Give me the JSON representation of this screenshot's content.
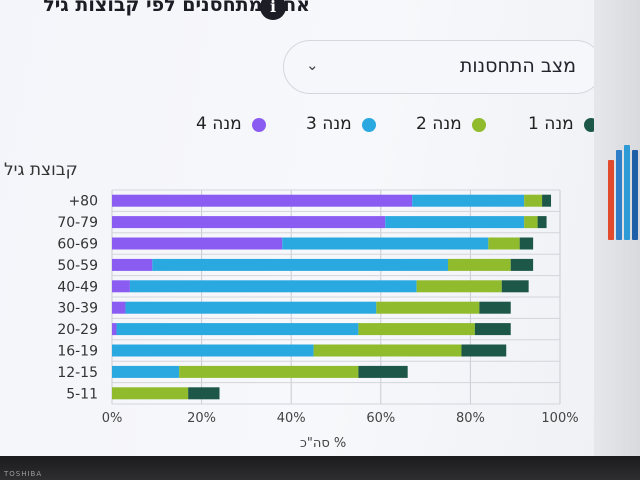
{
  "header": {
    "title": "אחוז מתחסנים לפי קבוצות גיל"
  },
  "filter": {
    "label": "מצב התחסנות"
  },
  "legend": [
    {
      "label": "מנה 1",
      "color": "#1d5747"
    },
    {
      "label": "מנה 2",
      "color": "#8fbb2c"
    },
    {
      "label": "מנה 3",
      "color": "#2aa8e0"
    },
    {
      "label": "מנה 4",
      "color": "#8a5cf2"
    }
  ],
  "device": {
    "brand": "TOSHIBA"
  },
  "chart_data": {
    "type": "bar",
    "orientation": "horizontal",
    "stacked": true,
    "categories": [
      "+80",
      "70-79",
      "60-69",
      "50-59",
      "40-49",
      "30-39",
      "20-29",
      "16-19",
      "12-15",
      "5-11"
    ],
    "series": [
      {
        "name": "מנה 4",
        "color": "#8a5cf2",
        "values": [
          67,
          61,
          38,
          9,
          4,
          3,
          1,
          0,
          0,
          0
        ]
      },
      {
        "name": "מנה 3",
        "color": "#2aa8e0",
        "values": [
          25,
          31,
          46,
          66,
          64,
          56,
          54,
          45,
          15,
          0
        ]
      },
      {
        "name": "מנה 2",
        "color": "#8fbb2c",
        "values": [
          4,
          3,
          7,
          14,
          19,
          23,
          26,
          33,
          40,
          17
        ]
      },
      {
        "name": "מנה 1",
        "color": "#1d5747",
        "values": [
          2,
          2,
          3,
          5,
          6,
          7,
          8,
          10,
          11,
          7
        ]
      }
    ],
    "xlabel": "% סה\"כ",
    "ylabel": "קבוצת גיל",
    "xlim": [
      0,
      100
    ],
    "xticks": [
      "0%",
      "20%",
      "40%",
      "60%",
      "80%",
      "100%"
    ],
    "grid": true,
    "legend_position": "top"
  }
}
